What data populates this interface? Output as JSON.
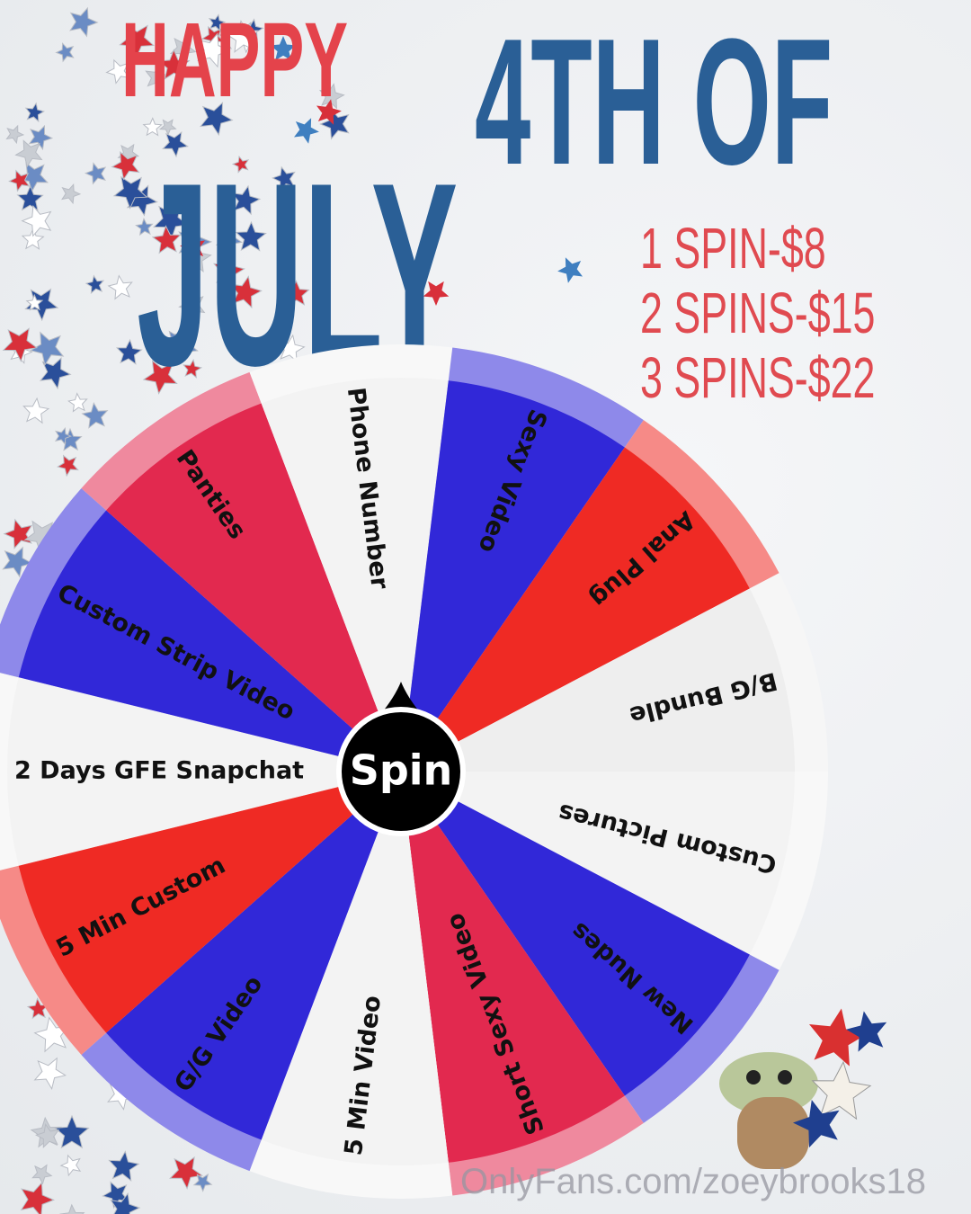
{
  "title": {
    "line1": "HAPPY",
    "line2": "4TH OF",
    "line3": "JULY"
  },
  "pricing": [
    "1 SPIN-$8",
    "2 SPINS-$15",
    "3 SPINS-$22"
  ],
  "wheel": {
    "center_label": "Spin",
    "segments": [
      {
        "label": "2 Days GFE Snapchat",
        "color": "#f3f3f3"
      },
      {
        "label": "Custom Strip Video",
        "color": "#3128d8"
      },
      {
        "label": "Panties",
        "color": "#e2294f"
      },
      {
        "label": "Phone Number",
        "color": "#f3f3f3"
      },
      {
        "label": "Sexy Video",
        "color": "#3128d8"
      },
      {
        "label": "Anal Plug",
        "color": "#ef2a24"
      },
      {
        "label": "B/G Bundle",
        "color": "#eeeeee"
      },
      {
        "label": "Custom Pictures",
        "color": "#f3f3f3"
      },
      {
        "label": "New Nudes",
        "color": "#3128d8"
      },
      {
        "label": "Short Sexy Video",
        "color": "#e2294f"
      },
      {
        "label": "5 Min Video",
        "color": "#f3f3f3"
      },
      {
        "label": "G/G Video",
        "color": "#3128d8"
      },
      {
        "label": "5 Min Custom",
        "color": "#ef2a24"
      }
    ]
  },
  "watermark": "OnlyFans.com/zoeybrooks18",
  "colors": {
    "red": "#e4434b",
    "blue": "#2a5f96"
  }
}
